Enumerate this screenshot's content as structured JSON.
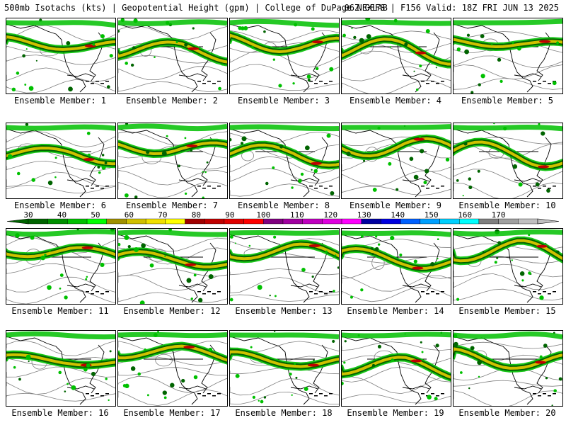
{
  "header": {
    "title_left": "500mb Isotachs (kts) | Geopotential Height (gpm) | College of DuPage NEXLAB",
    "title_right": "06Z GEFS | F156 Valid: 18Z FRI JUN 13 2025"
  },
  "panels": [
    {
      "label": "Ensemble Member: 1"
    },
    {
      "label": "Ensemble Member: 2"
    },
    {
      "label": "Ensemble Member: 3"
    },
    {
      "label": "Ensemble Member: 4"
    },
    {
      "label": "Ensemble Member: 5"
    },
    {
      "label": "Ensemble Member: 6"
    },
    {
      "label": "Ensemble Member: 7"
    },
    {
      "label": "Ensemble Member: 8"
    },
    {
      "label": "Ensemble Member: 9"
    },
    {
      "label": "Ensemble Member: 10"
    },
    {
      "label": "Ensemble Member: 11"
    },
    {
      "label": "Ensemble Member: 12"
    },
    {
      "label": "Ensemble Member: 13"
    },
    {
      "label": "Ensemble Member: 14"
    },
    {
      "label": "Ensemble Member: 15"
    },
    {
      "label": "Ensemble Member: 16"
    },
    {
      "label": "Ensemble Member: 17"
    },
    {
      "label": "Ensemble Member: 18"
    },
    {
      "label": "Ensemble Member: 19"
    },
    {
      "label": "Ensemble Member: 20"
    }
  ],
  "legend": {
    "tick_labels": [
      "30",
      "40",
      "50",
      "60",
      "70",
      "80",
      "90",
      "100",
      "110",
      "120",
      "130",
      "140",
      "150",
      "160",
      "170"
    ],
    "colors": [
      "#006400",
      "#009000",
      "#00c000",
      "#00ff00",
      "#a09000",
      "#d0c000",
      "#f0e000",
      "#ffff00",
      "#a00000",
      "#c00000",
      "#e00000",
      "#ff0000",
      "#800080",
      "#a000a0",
      "#c000c0",
      "#e000e0",
      "#ff00ff",
      "#0000a0",
      "#0000e0",
      "#0060ff",
      "#00a0ff",
      "#00d0ff",
      "#00ffff",
      "#808080",
      "#a0a0a0",
      "#c0c0c0"
    ]
  },
  "style": {
    "jet_green": "#00c000",
    "jet_dark": "#006400",
    "jet_yellow": "#d0c000",
    "jet_red": "#c00000",
    "height_contour": "#808080",
    "coastline": "#000000"
  }
}
